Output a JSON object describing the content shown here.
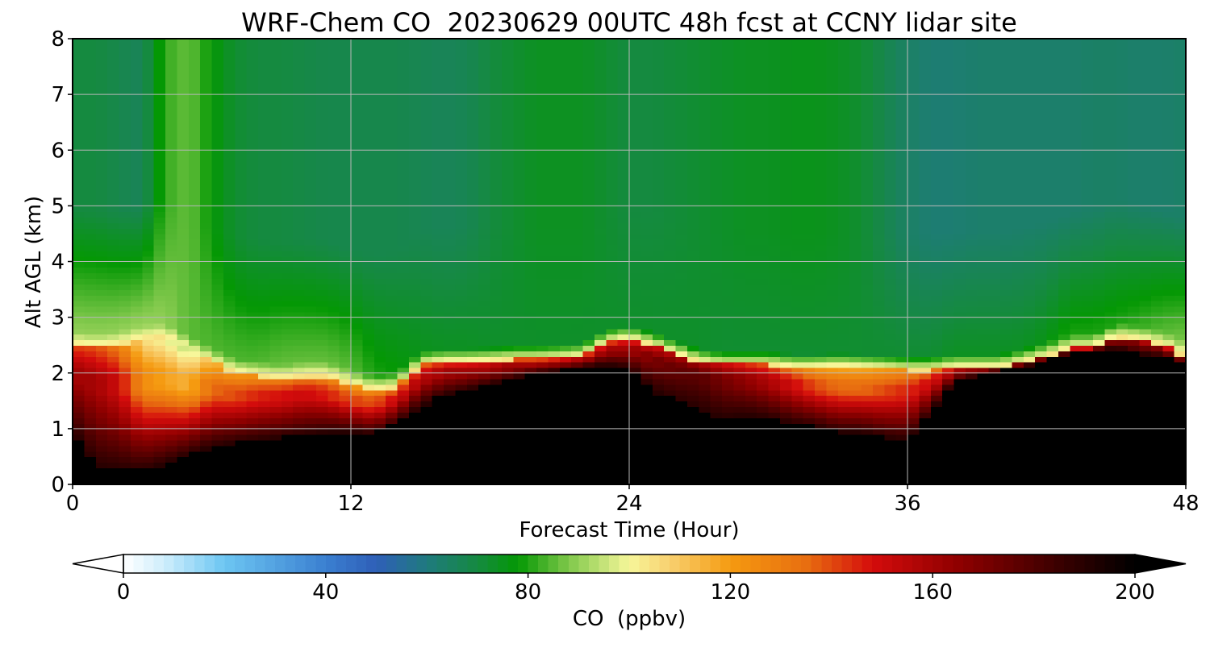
{
  "chart_data": {
    "type": "heatmap",
    "title": "WRF-Chem CO  20230629 00UTC 48h fcst at CCNY lidar site",
    "xlabel": "Forecast Time (Hour)",
    "ylabel": "Alt AGL (km)",
    "xlim": [
      0,
      48
    ],
    "ylim": [
      0,
      8
    ],
    "xticks": [
      "0",
      "12",
      "24",
      "36",
      "48"
    ],
    "yticks": [
      "0",
      "1",
      "2",
      "3",
      "4",
      "5",
      "6",
      "7",
      "8"
    ],
    "grid": true,
    "colorbar": {
      "label": "CO  (ppbv)",
      "range": [
        0,
        200
      ],
      "ticks": [
        "0",
        "40",
        "80",
        "120",
        "160",
        "200"
      ],
      "extend": "both",
      "colors": [
        {
          "value": 0,
          "color": "#ffffff"
        },
        {
          "value": 8,
          "color": "#cfeefc"
        },
        {
          "value": 20,
          "color": "#6cc6f2"
        },
        {
          "value": 40,
          "color": "#3a7fd0"
        },
        {
          "value": 50,
          "color": "#2f5fb8"
        },
        {
          "value": 60,
          "color": "#1f7a7e"
        },
        {
          "value": 70,
          "color": "#158a40"
        },
        {
          "value": 78,
          "color": "#049804"
        },
        {
          "value": 88,
          "color": "#7fc84a"
        },
        {
          "value": 100,
          "color": "#f7f79a"
        },
        {
          "value": 108,
          "color": "#f8d070"
        },
        {
          "value": 120,
          "color": "#f59a10"
        },
        {
          "value": 135,
          "color": "#e86e10"
        },
        {
          "value": 148,
          "color": "#d40c0c"
        },
        {
          "value": 165,
          "color": "#8f0000"
        },
        {
          "value": 185,
          "color": "#3a0000"
        },
        {
          "value": 200,
          "color": "#000000"
        }
      ]
    },
    "x": [
      0,
      1,
      2,
      3,
      4,
      5,
      6,
      7,
      8,
      9,
      10,
      11,
      12,
      13,
      14,
      15,
      16,
      17,
      18,
      19,
      20,
      21,
      22,
      23,
      24,
      25,
      26,
      27,
      28,
      29,
      30,
      31,
      32,
      33,
      34,
      35,
      36,
      37,
      38,
      39,
      40,
      41,
      42,
      43,
      44,
      45,
      46,
      47,
      48
    ],
    "terrain_top_km": [
      0.95,
      0.32,
      0.28,
      0.25,
      0.38,
      0.55,
      0.68,
      0.75,
      0.8,
      0.85,
      0.9,
      0.95,
      0.95,
      0.9,
      1.1,
      1.4,
      1.6,
      1.7,
      1.8,
      1.9,
      2.0,
      2.05,
      2.1,
      2.15,
      2.1,
      1.7,
      1.5,
      1.35,
      1.2,
      1.25,
      1.2,
      1.1,
      1.05,
      0.95,
      0.95,
      0.85,
      0.8,
      1.3,
      1.85,
      1.95,
      2.05,
      2.1,
      2.25,
      2.35,
      2.4,
      2.45,
      2.35,
      2.3,
      2.1
    ],
    "boundary_layer_top_km": [
      2.5,
      2.45,
      2.5,
      2.6,
      2.65,
      2.4,
      2.2,
      2.0,
      1.95,
      1.9,
      1.95,
      1.95,
      1.8,
      1.7,
      1.75,
      2.15,
      2.2,
      2.2,
      2.22,
      2.25,
      2.25,
      2.27,
      2.3,
      2.55,
      2.62,
      2.5,
      2.35,
      2.2,
      2.15,
      2.15,
      2.15,
      2.1,
      2.1,
      2.12,
      2.1,
      2.08,
      2.05,
      2.05,
      2.1,
      2.1,
      2.1,
      2.2,
      2.3,
      2.45,
      2.45,
      2.65,
      2.6,
      2.5,
      2.3
    ],
    "free_troposphere_co_ppbv": [
      70,
      70,
      68,
      66,
      82,
      86,
      78,
      72,
      70,
      70,
      69,
      68,
      68,
      68,
      68,
      67,
      66,
      67,
      70,
      72,
      74,
      74,
      74,
      72,
      70,
      70,
      71,
      72,
      73,
      74,
      74,
      75,
      75,
      74,
      72,
      68,
      64,
      62,
      62,
      63,
      63,
      63,
      63,
      63,
      64,
      64,
      63,
      63,
      64
    ],
    "mid_layer_co_ppbv": [
      90,
      90,
      90,
      91,
      90,
      85,
      84,
      84,
      84,
      86,
      86,
      86,
      85,
      80,
      78,
      75,
      74,
      74,
      73,
      73,
      73,
      73,
      73,
      73,
      73,
      73,
      73,
      73,
      72,
      72,
      72,
      72,
      72,
      72,
      72,
      72,
      72,
      72,
      74,
      74,
      74,
      74,
      76,
      80,
      80,
      80,
      82,
      85,
      88
    ],
    "boundary_layer_co_ppbv": [
      160,
      160,
      150,
      125,
      118,
      115,
      135,
      140,
      145,
      148,
      150,
      145,
      140,
      140,
      150,
      155,
      160,
      160,
      160,
      160,
      160,
      160,
      160,
      160,
      160,
      170,
      175,
      178,
      172,
      165,
      158,
      150,
      140,
      135,
      135,
      140,
      145,
      150,
      160,
      165,
      168,
      170,
      170,
      170,
      170,
      170,
      170,
      170,
      170
    ]
  }
}
